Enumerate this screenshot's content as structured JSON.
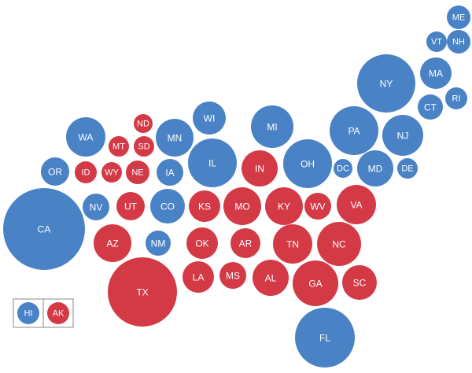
{
  "colors": {
    "blue": "#4a82c6",
    "red": "#d33a46",
    "inset_border": "#888888"
  },
  "states": [
    {
      "abbr": "ME",
      "party": "blue"
    },
    {
      "abbr": "VT",
      "party": "blue"
    },
    {
      "abbr": "NH",
      "party": "blue"
    },
    {
      "abbr": "NY",
      "party": "blue"
    },
    {
      "abbr": "MA",
      "party": "blue"
    },
    {
      "abbr": "CT",
      "party": "blue"
    },
    {
      "abbr": "RI",
      "party": "blue"
    },
    {
      "abbr": "WI",
      "party": "blue"
    },
    {
      "abbr": "ND",
      "party": "red"
    },
    {
      "abbr": "MI",
      "party": "blue"
    },
    {
      "abbr": "PA",
      "party": "blue"
    },
    {
      "abbr": "NJ",
      "party": "blue"
    },
    {
      "abbr": "WA",
      "party": "blue"
    },
    {
      "abbr": "MT",
      "party": "red"
    },
    {
      "abbr": "SD",
      "party": "red"
    },
    {
      "abbr": "MN",
      "party": "blue"
    },
    {
      "abbr": "IL",
      "party": "blue"
    },
    {
      "abbr": "IN",
      "party": "red"
    },
    {
      "abbr": "OH",
      "party": "blue"
    },
    {
      "abbr": "OR",
      "party": "blue"
    },
    {
      "abbr": "ID",
      "party": "red"
    },
    {
      "abbr": "WY",
      "party": "red"
    },
    {
      "abbr": "NE",
      "party": "red"
    },
    {
      "abbr": "IA",
      "party": "blue"
    },
    {
      "abbr": "DC",
      "party": "blue"
    },
    {
      "abbr": "MD",
      "party": "blue"
    },
    {
      "abbr": "DE",
      "party": "blue"
    },
    {
      "abbr": "CA",
      "party": "blue"
    },
    {
      "abbr": "NV",
      "party": "blue"
    },
    {
      "abbr": "UT",
      "party": "red"
    },
    {
      "abbr": "CO",
      "party": "blue"
    },
    {
      "abbr": "KS",
      "party": "red"
    },
    {
      "abbr": "MO",
      "party": "red"
    },
    {
      "abbr": "KY",
      "party": "red"
    },
    {
      "abbr": "WV",
      "party": "red"
    },
    {
      "abbr": "VA",
      "party": "red"
    },
    {
      "abbr": "AZ",
      "party": "red"
    },
    {
      "abbr": "NM",
      "party": "blue"
    },
    {
      "abbr": "OK",
      "party": "red"
    },
    {
      "abbr": "AR",
      "party": "red"
    },
    {
      "abbr": "TN",
      "party": "red"
    },
    {
      "abbr": "NC",
      "party": "red"
    },
    {
      "abbr": "TX",
      "party": "red"
    },
    {
      "abbr": "LA",
      "party": "red"
    },
    {
      "abbr": "MS",
      "party": "red"
    },
    {
      "abbr": "AL",
      "party": "red"
    },
    {
      "abbr": "GA",
      "party": "red"
    },
    {
      "abbr": "SC",
      "party": "red"
    },
    {
      "abbr": "FL",
      "party": "blue"
    },
    {
      "abbr": "HI",
      "party": "blue"
    },
    {
      "abbr": "AK",
      "party": "red"
    }
  ]
}
